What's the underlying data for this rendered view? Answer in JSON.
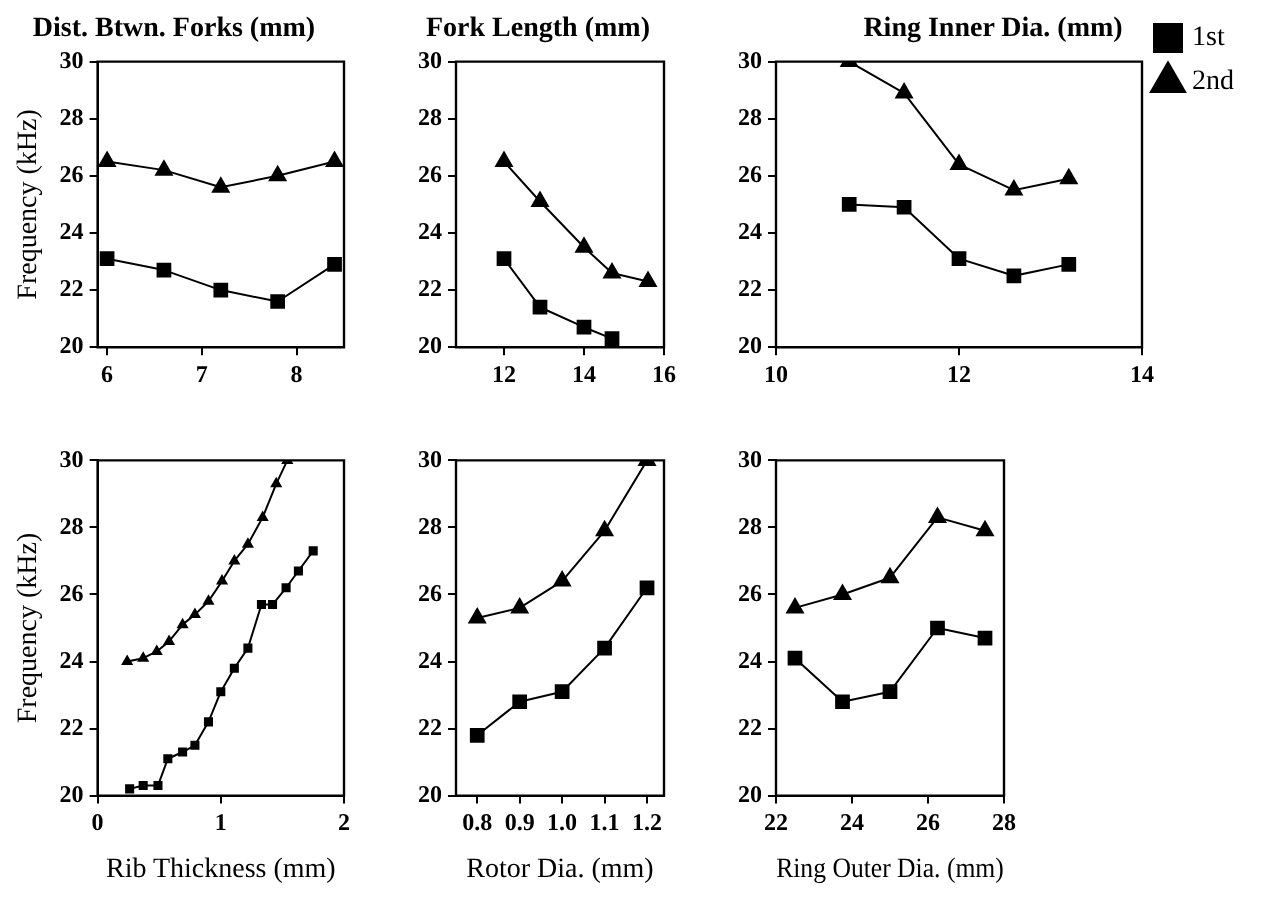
{
  "chart_data": [
    {
      "type": "line",
      "title": "Dist. Btwn. Forks (mm)",
      "ylabel": "Frequency (kHz)",
      "xlim": [
        5.9,
        8.5
      ],
      "xticks": [
        6,
        7,
        8
      ],
      "ylim": [
        20,
        30
      ],
      "yticks": [
        20,
        22,
        24,
        26,
        28,
        30
      ],
      "grid": false,
      "legend": false,
      "series": [
        {
          "color": "#000000",
          "marker": "square",
          "x": [
            6,
            6.6,
            7.2,
            7.8,
            8.4
          ],
          "values": [
            23.1,
            22.7,
            22.0,
            21.6,
            22.9
          ]
        },
        {
          "color": "#000000",
          "marker": "triangle",
          "x": [
            6,
            6.6,
            7.2,
            7.8,
            8.4
          ],
          "values": [
            26.5,
            26.2,
            25.6,
            26.0,
            26.5
          ]
        }
      ]
    },
    {
      "type": "line",
      "title": "Fork Length (mm)",
      "xlim": [
        10.8,
        16
      ],
      "xticks": [
        12,
        14,
        16
      ],
      "ylim": [
        20,
        30
      ],
      "yticks": [
        20,
        22,
        24,
        26,
        28,
        30
      ],
      "grid": false,
      "legend": false,
      "series": [
        {
          "color": "#000000",
          "marker": "square",
          "x": [
            12,
            12.9,
            14.0,
            14.7
          ],
          "values": [
            23.1,
            21.4,
            20.7,
            20.3
          ]
        },
        {
          "color": "#000000",
          "marker": "triangle",
          "x": [
            12,
            12.9,
            14.0,
            14.7,
            15.6
          ],
          "values": [
            26.5,
            25.1,
            23.5,
            22.6,
            22.3
          ]
        }
      ]
    },
    {
      "type": "line",
      "title": "Ring Inner Dia. (mm)",
      "xlim": [
        10,
        14
      ],
      "xticks": [
        10,
        12,
        14
      ],
      "ylim": [
        20,
        30
      ],
      "yticks": [
        20,
        22,
        24,
        26,
        28,
        30
      ],
      "grid": false,
      "legend": "top right",
      "series": [
        {
          "name": "1st",
          "color": "#000000",
          "marker": "square",
          "x": [
            10.8,
            11.4,
            12,
            12.6,
            13.2
          ],
          "values": [
            25.0,
            24.9,
            23.1,
            22.5,
            22.9
          ]
        },
        {
          "name": "2nd",
          "color": "#000000",
          "marker": "triangle",
          "x": [
            10.8,
            11.4,
            12,
            12.6,
            13.2
          ],
          "values": [
            30.0,
            28.9,
            26.4,
            25.5,
            25.9
          ]
        }
      ]
    },
    {
      "type": "line",
      "xlabel": "Rib Thickness (mm)",
      "ylabel": "Frequency (kHz)",
      "xlim": [
        0,
        2
      ],
      "xticks": [
        0,
        1,
        2
      ],
      "ylim": [
        20,
        30
      ],
      "yticks": [
        20,
        22,
        24,
        26,
        28,
        30
      ],
      "grid": false,
      "legend": false,
      "series": [
        {
          "color": "#000000",
          "marker": "square",
          "x": [
            0.26,
            0.37,
            0.49,
            0.57,
            0.69,
            0.79,
            0.9,
            1.0,
            1.11,
            1.22,
            1.33,
            1.42,
            1.53,
            1.63,
            1.75
          ],
          "values": [
            20.2,
            20.3,
            20.3,
            21.1,
            21.3,
            21.5,
            22.2,
            23.1,
            23.8,
            24.4,
            25.7,
            25.7,
            26.2,
            26.7,
            27.3
          ]
        },
        {
          "color": "#000000",
          "marker": "triangle",
          "x": [
            0.24,
            0.37,
            0.48,
            0.58,
            0.69,
            0.79,
            0.9,
            1.01,
            1.11,
            1.22,
            1.34,
            1.45,
            1.54
          ],
          "values": [
            24.0,
            24.1,
            24.3,
            24.6,
            25.1,
            25.4,
            25.8,
            26.4,
            27.0,
            27.5,
            28.3,
            29.3,
            30.0
          ]
        }
      ]
    },
    {
      "type": "line",
      "xlabel": "Rotor Dia. (mm)",
      "xlim": [
        0.75,
        1.24
      ],
      "xticks": [
        {
          "value": 0.8,
          "label": "0.8"
        },
        {
          "value": 0.9,
          "label": "0.9"
        },
        {
          "value": 1.0,
          "label": "1.0"
        },
        {
          "value": 1.1,
          "label": "1.1"
        },
        {
          "value": 1.2,
          "label": "1.2"
        }
      ],
      "ylim": [
        20,
        30
      ],
      "yticks": [
        20,
        22,
        24,
        26,
        28,
        30
      ],
      "grid": false,
      "legend": false,
      "series": [
        {
          "color": "#000000",
          "marker": "square",
          "x": [
            0.8,
            0.9,
            1.0,
            1.1,
            1.2
          ],
          "values": [
            21.8,
            22.8,
            23.1,
            24.4,
            26.2
          ]
        },
        {
          "color": "#000000",
          "marker": "triangle",
          "x": [
            0.8,
            0.9,
            1.0,
            1.1,
            1.2
          ],
          "values": [
            25.3,
            25.6,
            26.4,
            27.9,
            30.0
          ]
        }
      ]
    },
    {
      "type": "line",
      "xlabel": "Ring Outer Dia. (mm)",
      "xlim": [
        22,
        28
      ],
      "xticks": [
        22,
        24,
        26,
        28
      ],
      "ylim": [
        20,
        30
      ],
      "yticks": [
        20,
        22,
        24,
        26,
        28,
        30
      ],
      "grid": false,
      "legend": false,
      "series": [
        {
          "color": "#000000",
          "marker": "square",
          "x": [
            22.5,
            23.75,
            25,
            26.25,
            27.5
          ],
          "values": [
            24.1,
            22.8,
            23.1,
            25.0,
            24.7
          ]
        },
        {
          "color": "#000000",
          "marker": "triangle",
          "x": [
            22.5,
            23.75,
            25,
            26.25,
            27.5
          ],
          "values": [
            25.6,
            26.0,
            26.5,
            28.3,
            27.9
          ]
        }
      ]
    }
  ]
}
